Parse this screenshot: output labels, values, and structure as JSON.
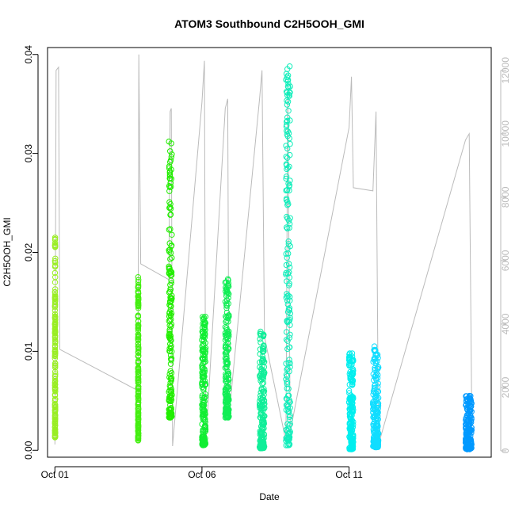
{
  "chart_data": {
    "type": "scatter",
    "title": "ATOM3 Southbound C2H5OOH_GMI",
    "xlabel": "Date",
    "ylabel": "C2H5OOH_GMI",
    "y2label": "",
    "xlim": [
      "2017-09-30T18:00",
      "2017-10-15T20:00"
    ],
    "ylim": [
      -0.0007,
      0.0407
    ],
    "y2lim": [
      -200,
      12720
    ],
    "x_ticks": [
      {
        "date": "2017-10-01T00:00",
        "label": "Oct 01"
      },
      {
        "date": "2017-10-06T00:00",
        "label": "Oct 06"
      },
      {
        "date": "2017-10-11T00:00",
        "label": "Oct 11"
      }
    ],
    "y_ticks": [
      0.0,
      0.01,
      0.02,
      0.03,
      0.04
    ],
    "y_tick_labels": [
      "0.00",
      "0.01",
      "0.02",
      "0.03",
      "0.04"
    ],
    "y2_ticks": [
      0,
      2000,
      4000,
      6000,
      8000,
      10000,
      12000
    ],
    "y2_tick_labels": [
      "0",
      "2000",
      "4000",
      "6000",
      "8000",
      "10000",
      "12000"
    ],
    "grid": false,
    "legend": "none",
    "series": [
      {
        "kind": "points",
        "axis": "left",
        "marker": "open-circle",
        "segments": [
          {
            "start": "2017-10-01T00:00",
            "end": "2017-10-01T00:20",
            "min": 0.0013,
            "max": 0.0215,
            "color": "#99ee22"
          },
          {
            "start": "2017-10-03T19:50",
            "end": "2017-10-03T20:10",
            "min": 0.001,
            "max": 0.0175,
            "color": "#44ee11"
          },
          {
            "start": "2017-10-04T21:00",
            "end": "2017-10-04T23:30",
            "min": 0.0033,
            "max": 0.0312,
            "color": "#22ee00"
          },
          {
            "start": "2017-10-06T00:00",
            "end": "2017-10-06T03:00",
            "min": 0.0005,
            "max": 0.0135,
            "color": "#11ee33"
          },
          {
            "start": "2017-10-06T19:00",
            "end": "2017-10-06T22:00",
            "min": 0.0033,
            "max": 0.0173,
            "color": "#11ee55"
          },
          {
            "start": "2017-10-07T23:00",
            "end": "2017-10-08T03:00",
            "min": 0.0002,
            "max": 0.012,
            "color": "#11ee99"
          },
          {
            "start": "2017-10-08T20:30",
            "end": "2017-10-09T00:00",
            "min": 0.0005,
            "max": 0.0388,
            "color": "#11eebb"
          },
          {
            "start": "2017-10-11T00:00",
            "end": "2017-10-11T03:30",
            "min": 0.0001,
            "max": 0.0098,
            "color": "#00eeee"
          },
          {
            "start": "2017-10-11T19:30",
            "end": "2017-10-12T00:00",
            "min": 0.0003,
            "max": 0.0105,
            "color": "#11ddff"
          },
          {
            "start": "2017-10-14T23:00",
            "end": "2017-10-15T04:00",
            "min": 0.0001,
            "max": 0.0055,
            "color": "#0099ff"
          }
        ]
      },
      {
        "kind": "line",
        "axis": "right",
        "color": "#bbbbbb",
        "points": [
          [
            "2017-10-01T00:00",
            200
          ],
          [
            "2017-10-01T01:00",
            12000
          ],
          [
            "2017-10-01T03:00",
            12100
          ],
          [
            "2017-10-01T04:00",
            3200
          ],
          [
            "2017-10-03T19:50",
            1900
          ],
          [
            "2017-10-03T20:30",
            12500
          ],
          [
            "2017-10-03T22:00",
            5900
          ],
          [
            "2017-10-04T21:00",
            5400
          ],
          [
            "2017-10-04T22:00",
            10700
          ],
          [
            "2017-10-04T23:00",
            10800
          ],
          [
            "2017-10-05T00:00",
            150
          ],
          [
            "2017-10-06T00:00",
            11000
          ],
          [
            "2017-10-06T02:00",
            12300
          ],
          [
            "2017-10-06T03:00",
            150
          ],
          [
            "2017-10-06T19:00",
            10800
          ],
          [
            "2017-10-06T21:00",
            11100
          ],
          [
            "2017-10-06T22:00",
            1100
          ],
          [
            "2017-10-07T23:00",
            11100
          ],
          [
            "2017-10-08T01:00",
            12000
          ],
          [
            "2017-10-08T03:00",
            3600
          ],
          [
            "2017-10-08T20:30",
            300
          ],
          [
            "2017-10-08T22:00",
            11500
          ],
          [
            "2017-10-09T00:00",
            600
          ],
          [
            "2017-10-11T00:00",
            10200
          ],
          [
            "2017-10-11T02:00",
            11800
          ],
          [
            "2017-10-11T03:30",
            8300
          ],
          [
            "2017-10-11T19:30",
            8200
          ],
          [
            "2017-10-11T22:00",
            10700
          ],
          [
            "2017-10-12T00:00",
            200
          ],
          [
            "2017-10-14T23:00",
            9800
          ],
          [
            "2017-10-15T02:00",
            10000
          ],
          [
            "2017-10-15T04:00",
            1800
          ]
        ]
      }
    ]
  }
}
